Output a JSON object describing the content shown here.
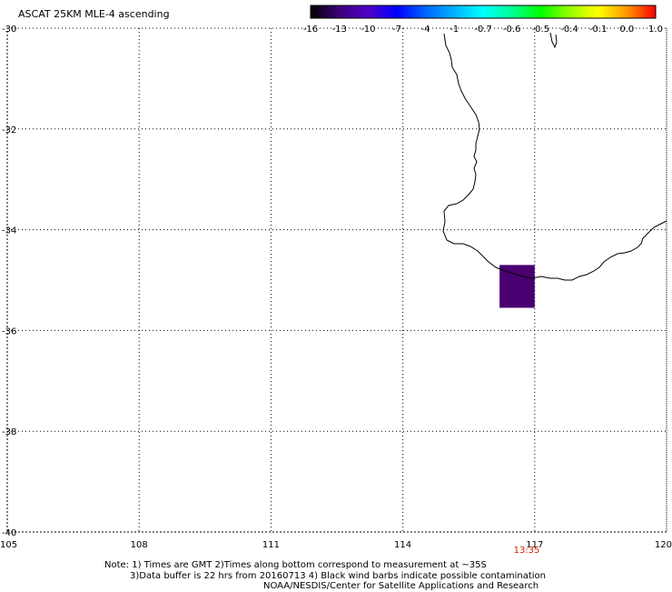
{
  "title": "ASCAT 25KM MLE-4 ascending",
  "colorbar": {
    "labels": [
      "-16",
      "-13",
      "-10",
      "-7",
      "-4",
      "-1",
      "-0.7",
      "-0.6",
      "-0.5",
      "-0.4",
      "-0.1",
      "0.0",
      "1.0"
    ],
    "colors": [
      "#000000",
      "#3c0078",
      "#5000c8",
      "#0000ff",
      "#0064ff",
      "#00b4ff",
      "#00ffff",
      "#00ff96",
      "#00ff00",
      "#96ff00",
      "#ffff00",
      "#ff9600",
      "#ff0000"
    ]
  },
  "map": {
    "lon_ticks": [
      "105",
      "108",
      "111",
      "114",
      "117",
      "120"
    ],
    "lat_ticks": [
      "-30",
      "-32",
      "-34",
      "-36",
      "-38",
      "-40"
    ],
    "lon_range": [
      105,
      120
    ],
    "lat_range": [
      -30,
      -40
    ],
    "pixel": {
      "lon": [
        116.2,
        117.0
      ],
      "lat": [
        -34.7,
        -35.55
      ],
      "color": "#4a0070"
    }
  },
  "time_label": "13:35",
  "notes": {
    "line1": "Note: 1) Times are GMT 2)Times along bottom correspond to measurement at ~35S",
    "line2": "3)Data buffer is 22 hrs from 20160713 4) Black wind barbs indicate possible contamination",
    "line3": "NOAA/NESDIS/Center for Satellite Applications and Research"
  }
}
